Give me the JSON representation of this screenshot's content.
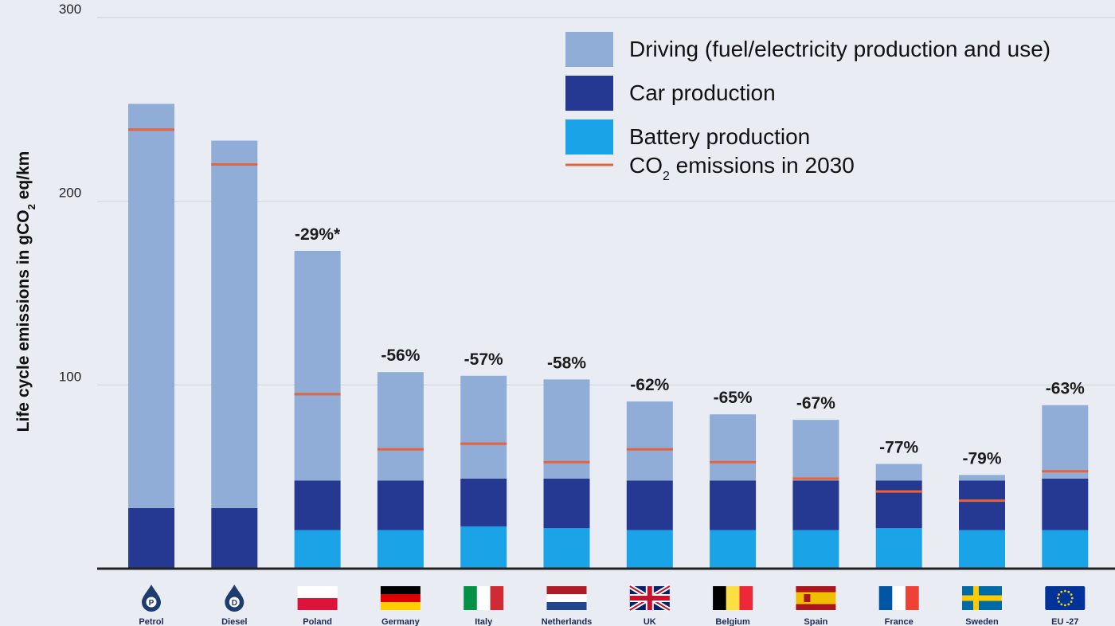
{
  "colors": {
    "driving": "#8fadd6",
    "car_production": "#253993",
    "battery_production": "#1aa3e6",
    "co2_2030": "#e8623a",
    "grid": "#cfd6e2",
    "axis": "#222222",
    "background": "#e9edf3"
  },
  "legend": {
    "placement": "top-right",
    "items": [
      {
        "key": "driving",
        "label": "Driving (fuel/electricity production and use)"
      },
      {
        "key": "car_production",
        "label": "Car production"
      },
      {
        "key": "battery_production",
        "label": "Battery production"
      },
      {
        "key": "co2_2030",
        "label_prefix": "CO",
        "label_sub": "2",
        "label_suffix": " emissions in 2030"
      }
    ]
  },
  "chart_data": {
    "type": "bar",
    "stacked": true,
    "title": "",
    "xlabel": "",
    "ylabel": {
      "prefix": "Life  cycle emissions in gCO",
      "sub": "2",
      "suffix": " eq/km"
    },
    "ylim": [
      0,
      300
    ],
    "yticks": [
      100,
      200,
      300
    ],
    "grid": true,
    "categories": [
      "Petrol",
      "Diesel",
      "Poland",
      "Germany",
      "Italy",
      "Netherlands",
      "UK",
      "Belgium",
      "Spain",
      "France",
      "Sweden",
      "EU -27"
    ],
    "category_icons": [
      "petrol-drop-icon",
      "diesel-drop-icon",
      "poland-flag-icon",
      "germany-flag-icon",
      "italy-flag-icon",
      "netherlands-flag-icon",
      "uk-flag-icon",
      "belgium-flag-icon",
      "spain-flag-icon",
      "france-flag-icon",
      "sweden-flag-icon",
      "eu-flag-icon"
    ],
    "series": [
      {
        "key": "battery_production",
        "name": "Battery production",
        "values": [
          0,
          0,
          21,
          21,
          23,
          22,
          21,
          21,
          21,
          22,
          21,
          21
        ]
      },
      {
        "key": "car_production",
        "name": "Car production",
        "values": [
          33,
          33,
          27,
          27,
          26,
          27,
          27,
          27,
          27,
          26,
          27,
          28
        ]
      },
      {
        "key": "driving",
        "name": "Driving (fuel/electricity production and use)",
        "values": [
          220,
          200,
          125,
          59,
          56,
          54,
          43,
          36,
          33,
          9,
          3,
          40
        ]
      }
    ],
    "co2_2030": [
      239,
      220,
      95,
      65,
      68,
      58,
      65,
      58,
      49,
      42,
      37,
      53
    ],
    "reduction_labels": [
      "",
      "",
      "-29%*",
      "-56%",
      "-57%",
      "-58%",
      "-62%",
      "-65%",
      "-67%",
      "-77%",
      "-79%",
      "-63%"
    ]
  }
}
